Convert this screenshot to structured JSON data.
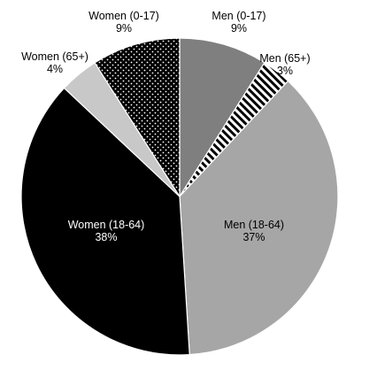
{
  "chart_data": {
    "type": "pie",
    "title": "",
    "start": "top, clockwise",
    "slices": [
      {
        "name": "Men (0-17)",
        "value": 9,
        "label_pct": "9%",
        "fill": "#7f7f7f",
        "pattern": "solid"
      },
      {
        "name": "Men (65+)",
        "value": 3,
        "label_pct": "3%",
        "fill": "#ffffff",
        "pattern": "diagonal-stripes"
      },
      {
        "name": "Men (18-64)",
        "value": 37,
        "label_pct": "37%",
        "fill": "#a6a6a6",
        "pattern": "solid"
      },
      {
        "name": "Women (18-64)",
        "value": 38,
        "label_pct": "38%",
        "fill": "#000000",
        "pattern": "solid",
        "label_color": "#ffffff"
      },
      {
        "name": "Women (65+)",
        "value": 4,
        "label_pct": "4%",
        "fill": "#c8c8c8",
        "pattern": "solid"
      },
      {
        "name": "Women (0-17)",
        "value": 9,
        "label_pct": "9%",
        "fill": "#000000",
        "pattern": "dotted"
      }
    ]
  }
}
